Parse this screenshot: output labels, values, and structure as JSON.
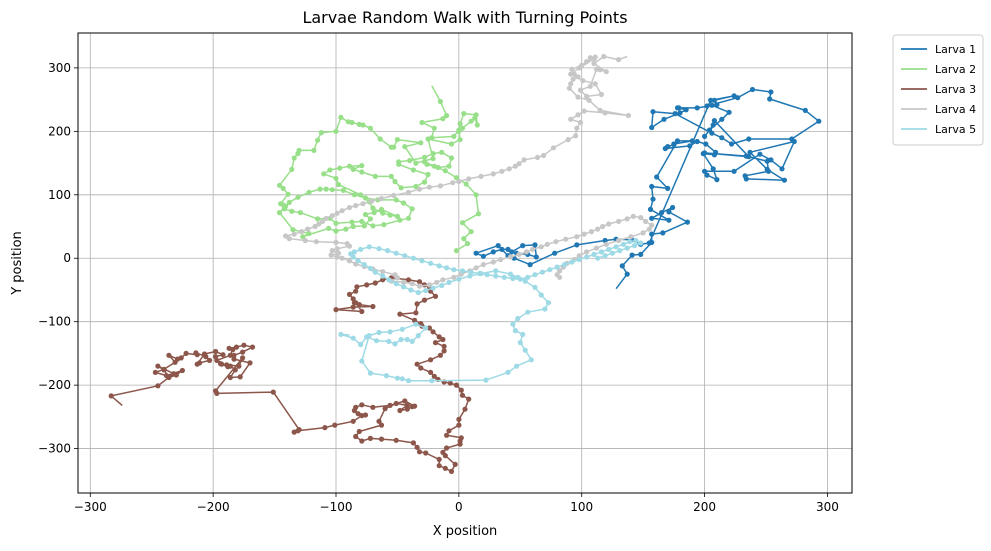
{
  "chart_data": {
    "type": "line",
    "title": "Larvae Random Walk with Turning Points",
    "xlabel": "X position",
    "ylabel": "Y position",
    "xlim": [
      -310,
      320
    ],
    "ylim": [
      -370,
      355
    ],
    "xticks": [
      -300,
      -200,
      -100,
      0,
      100,
      200,
      300
    ],
    "yticks": [
      -300,
      -200,
      -100,
      0,
      100,
      200,
      300
    ],
    "grid": true,
    "legend_position": "outside-top-right",
    "series": [
      {
        "name": "Larva 1",
        "color": "#1f77b4",
        "x": [
          128,
          137,
          133,
          141,
          148,
          157,
          157,
          166,
          186,
          171,
          174,
          165,
          157,
          171,
          156,
          158,
          157,
          170,
          161,
          178,
          190,
          175,
          175,
          170,
          168,
          188,
          194,
          201,
          209,
          208,
          199,
          207,
          210,
          202,
          200,
          224,
          245,
          254,
          263,
          273,
          237,
          251,
          265,
          234,
          233,
          252,
          251,
          234,
          200,
          236,
          208,
          207,
          200,
          204,
          214,
          220,
          206,
          202,
          227,
          239,
          254,
          253,
          282,
          293,
          271,
          236,
          222,
          214,
          206,
          176,
          158,
          157,
          167,
          180,
          185,
          178,
          179,
          194,
          210,
          208,
          224,
          205,
          155,
          148,
          141,
          128,
          119,
          96,
          78,
          58,
          45,
          40,
          32,
          14,
          20,
          28,
          35,
          40,
          47,
          56,
          63,
          62,
          52,
          43
        ],
        "y": [
          -48,
          -25,
          -12,
          5,
          6,
          25,
          38,
          40,
          57,
          73,
          80,
          72,
          63,
          60,
          77,
          93,
          113,
          110,
          128,
          185,
          185,
          180,
          179,
          176,
          173,
          177,
          184,
          180,
          167,
          163,
          165,
          141,
          124,
          131,
          137,
          137,
          164,
          155,
          141,
          184,
          167,
          140,
          123,
          125,
          130,
          137,
          153,
          161,
          166,
          160,
          217,
          210,
          192,
          202,
          219,
          230,
          241,
          240,
          253,
          266,
          262,
          251,
          233,
          216,
          188,
          188,
          180,
          190,
          197,
          228,
          231,
          206,
          219,
          229,
          234,
          237,
          237,
          237,
          242,
          249,
          256,
          249,
          24,
          22,
          29,
          30,
          28,
          21,
          8,
          -10,
          0,
          4,
          20,
          8,
          3,
          10,
          14,
          14,
          8,
          6,
          2,
          21,
          20,
          10
        ]
      },
      {
        "name": "Larva 2",
        "color": "#98df8a",
        "x": [
          -22,
          -15,
          -10,
          -13,
          -30,
          -20,
          -22,
          -4,
          0,
          1,
          4,
          14,
          15,
          13,
          10,
          3,
          0,
          1,
          -6,
          -25,
          -21,
          -35,
          -44,
          -31,
          -50,
          -53,
          -55,
          -64,
          -72,
          -78,
          -81,
          -87,
          -90,
          -96,
          -100,
          -112,
          -115,
          -118,
          -130,
          -131,
          -134,
          -136,
          -146,
          -143,
          -139,
          -145,
          -143,
          -142,
          -136,
          -129,
          -115,
          -105,
          -100,
          -87,
          -79,
          -70,
          -61,
          -48,
          -41,
          -38,
          -45,
          -51,
          -66,
          -76,
          -85,
          -94,
          -103,
          -108,
          -113,
          -122,
          -131,
          -138,
          -141,
          -146,
          -135,
          -122,
          -127,
          -106,
          -100,
          -92,
          -86,
          -77,
          -72,
          -76,
          -69,
          -63,
          -50,
          -56,
          -62,
          -70,
          -73,
          -80,
          -98,
          -100,
          -110,
          -105,
          -97,
          -89,
          -79,
          -86,
          -79,
          -68,
          -55,
          -52,
          -47,
          -35,
          -28,
          -25,
          -37,
          -49,
          -49,
          -40,
          -28,
          -21,
          -14,
          -6,
          -8,
          -17,
          -26,
          -28,
          -20,
          -11,
          -2,
          6,
          14,
          16,
          3,
          10,
          4,
          7,
          -2
        ],
        "y": [
          272,
          247,
          225,
          220,
          214,
          205,
          190,
          192,
          202,
          212,
          228,
          226,
          210,
          221,
          216,
          205,
          200,
          187,
          180,
          188,
          157,
          150,
          176,
          182,
          187,
          175,
          175,
          188,
          205,
          210,
          211,
          214,
          215,
          222,
          200,
          198,
          186,
          170,
          170,
          165,
          158,
          140,
          115,
          110,
          101,
          86,
          84,
          78,
          74,
          72,
          62,
          63,
          55,
          57,
          58,
          51,
          53,
          60,
          63,
          78,
          87,
          92,
          92,
          95,
          100,
          107,
          108,
          109,
          109,
          104,
          96,
          88,
          82,
          72,
          45,
          39,
          34,
          47,
          43,
          46,
          50,
          51,
          62,
          69,
          72,
          77,
          66,
          68,
          71,
          79,
          89,
          100,
          116,
          126,
          133,
          139,
          142,
          145,
          146,
          140,
          136,
          129,
          129,
          121,
          111,
          113,
          120,
          132,
          139,
          148,
          152,
          154,
          159,
          165,
          167,
          158,
          145,
          143,
          148,
          152,
          145,
          138,
          127,
          117,
          100,
          70,
          56,
          42,
          31,
          23,
          12
        ]
      },
      {
        "name": "Larva 3",
        "color": "#8c564b",
        "x": [
          -274,
          -283,
          -245,
          -232,
          -245,
          -240,
          -236,
          -230,
          -225,
          -238,
          -247,
          -240,
          -231,
          -236,
          -229,
          -226,
          -222,
          -213,
          -214,
          -206,
          -203,
          -211,
          -213,
          -207,
          -198,
          -192,
          -198,
          -194,
          -186,
          -182,
          -186,
          -178,
          -170,
          -183,
          -183,
          -176,
          -168,
          -175,
          -181,
          -187,
          -184,
          -186,
          -197,
          -193,
          -188,
          -189,
          -179,
          -176,
          -198,
          -197,
          -151,
          -130,
          -134,
          -131,
          -109,
          -101,
          -86,
          -79,
          -76,
          -82,
          -85,
          -84,
          -79,
          -70,
          -56,
          -44,
          -36,
          -38,
          -42,
          -48,
          -42,
          -51,
          -60,
          -65,
          -63,
          -81,
          -84,
          -79,
          -72,
          -63,
          -51,
          -37,
          -34,
          -32,
          -27,
          -16,
          -16,
          -11,
          -6,
          -3,
          -11,
          -13,
          -10,
          1,
          1,
          2,
          -10,
          -8,
          0,
          0,
          5,
          8,
          3,
          2,
          -2,
          -7,
          -12,
          -17,
          -20,
          -23,
          -31,
          -34,
          -23,
          -15,
          -12,
          -12,
          -19,
          -13,
          -16,
          -21,
          -24,
          -30,
          -31,
          -36,
          -48,
          -35,
          -34,
          -28,
          -19,
          -23,
          -24,
          -28,
          -32,
          -41,
          -55,
          -62,
          -68,
          -75,
          -83,
          -84,
          -89,
          -86,
          -85,
          -81,
          -70,
          -86,
          -100,
          -79,
          -84
        ],
        "y": [
          -232,
          -217,
          -201,
          -182,
          -170,
          -176,
          -188,
          -184,
          -177,
          -185,
          -180,
          -175,
          -164,
          -153,
          -159,
          -157,
          -150,
          -152,
          -149,
          -155,
          -161,
          -165,
          -167,
          -151,
          -147,
          -152,
          -155,
          -166,
          -170,
          -176,
          -188,
          -187,
          -165,
          -159,
          -153,
          -148,
          -140,
          -137,
          -140,
          -142,
          -144,
          -153,
          -161,
          -167,
          -171,
          -168,
          -170,
          -157,
          -209,
          -213,
          -211,
          -270,
          -274,
          -272,
          -267,
          -263,
          -257,
          -248,
          -247,
          -245,
          -240,
          -235,
          -231,
          -235,
          -232,
          -225,
          -233,
          -234,
          -238,
          -240,
          -232,
          -229,
          -237,
          -257,
          -263,
          -273,
          -281,
          -288,
          -284,
          -285,
          -287,
          -291,
          -298,
          -305,
          -307,
          -317,
          -327,
          -331,
          -336,
          -325,
          -311,
          -306,
          -299,
          -293,
          -288,
          -283,
          -279,
          -272,
          -263,
          -254,
          -238,
          -222,
          -216,
          -208,
          -200,
          -197,
          -195,
          -191,
          -186,
          -180,
          -173,
          -167,
          -160,
          -153,
          -146,
          -139,
          -133,
          -128,
          -124,
          -116,
          -110,
          -107,
          -103,
          -98,
          -88,
          -86,
          -72,
          -66,
          -60,
          -52,
          -45,
          -42,
          -37,
          -34,
          -31,
          -34,
          -39,
          -42,
          -45,
          -52,
          -57,
          -64,
          -70,
          -73,
          -76,
          -77,
          -81,
          -84,
          -70
        ]
      },
      {
        "name": "Larva 4",
        "color": "#c7c7c7",
        "x": [
          137,
          130,
          118,
          110,
          120,
          115,
          112,
          107,
          99,
          104,
          116,
          111,
          101,
          91,
          98,
          110,
          107,
          111,
          104,
          100,
          92,
          94,
          97,
          93,
          91,
          90,
          97,
          106,
          115,
          138,
          119,
          102,
          97,
          91,
          99,
          96,
          95,
          89,
          77,
          69,
          64,
          53,
          49,
          46,
          41,
          35,
          28,
          18,
          8,
          0,
          -5,
          -15,
          -24,
          -32,
          -41,
          -53,
          -63,
          -71,
          -78,
          -84,
          -89,
          -95,
          -99,
          -103,
          -108,
          -111,
          -114,
          -117,
          -123,
          -128,
          -134,
          -141,
          -138,
          -125,
          -116,
          -100,
          -91,
          -89,
          -99,
          -103,
          -98,
          -104,
          -99,
          -95,
          -89,
          -84,
          -77,
          -70,
          -62,
          -52,
          -50,
          -55,
          -45,
          -38,
          -32,
          -24,
          -18,
          -13,
          -4,
          2,
          9,
          14,
          20,
          28,
          34,
          42,
          49,
          55,
          60,
          67,
          72,
          79,
          87,
          96,
          102,
          108,
          113,
          117,
          122,
          130,
          137,
          142,
          148,
          152,
          157,
          155,
          150,
          140,
          130,
          120,
          112,
          104,
          98,
          94,
          88,
          85,
          82,
          80,
          82
        ],
        "y": [
          318,
          313,
          318,
          307,
          294,
          297,
          298,
          271,
          265,
          255,
          258,
          275,
          280,
          290,
          300,
          314,
          316,
          317,
          310,
          304,
          298,
          290,
          286,
          282,
          275,
          268,
          254,
          249,
          233,
          225,
          229,
          232,
          226,
          219,
          214,
          205,
          193,
          187,
          174,
          162,
          159,
          155,
          149,
          145,
          141,
          137,
          133,
          129,
          125,
          121,
          119,
          114,
          112,
          109,
          104,
          99,
          94,
          90,
          86,
          83,
          80,
          75,
          71,
          67,
          63,
          58,
          54,
          50,
          46,
          42,
          38,
          35,
          31,
          28,
          26,
          25,
          23,
          19,
          15,
          12,
          8,
          5,
          2,
          0,
          -4,
          -9,
          -13,
          -17,
          -21,
          -26,
          -31,
          -36,
          -38,
          -40,
          -44,
          -42,
          -38,
          -34,
          -30,
          -25,
          -20,
          -15,
          -10,
          -6,
          -2,
          2,
          6,
          10,
          14,
          18,
          22,
          26,
          30,
          34,
          38,
          42,
          46,
          50,
          54,
          58,
          62,
          66,
          64,
          58,
          52,
          46,
          40,
          34,
          28,
          22,
          16,
          10,
          4,
          -2,
          -8,
          -14,
          -20,
          -26,
          -30
        ]
      },
      {
        "name": "Larva 5",
        "color": "#9edae5",
        "x": [
          -89,
          -96,
          -86,
          -80,
          -75,
          -67,
          -57,
          -52,
          -47,
          -42,
          -38,
          -33,
          -27,
          -35,
          -46,
          -56,
          -65,
          -73,
          -79,
          -72,
          -59,
          -50,
          -46,
          -41,
          -22,
          22,
          40,
          47,
          59,
          54,
          50,
          52,
          46,
          44,
          48,
          56,
          70,
          73,
          67,
          62,
          54,
          48,
          42,
          30,
          18,
          9,
          0,
          -8,
          -14,
          -21,
          -27,
          -33,
          -39,
          -45,
          -51,
          -57,
          -62,
          -68,
          -72,
          -77,
          -82,
          -86,
          -88,
          -85,
          -80,
          -73,
          -65,
          -58,
          -51,
          -44,
          -37,
          -30,
          -23,
          -16,
          -10,
          -4,
          3,
          10,
          17,
          23,
          30,
          37,
          44,
          50,
          56,
          62,
          68,
          74,
          80,
          86,
          92,
          98,
          104,
          110,
          116,
          122,
          128,
          134,
          139,
          144,
          148,
          143,
          137,
          131,
          125,
          119,
          113
        ],
        "y": [
          -121,
          -120,
          -126,
          -136,
          -124,
          -130,
          -131,
          -135,
          -128,
          -128,
          -131,
          -122,
          -110,
          -104,
          -112,
          -116,
          -117,
          -122,
          -162,
          -181,
          -185,
          -189,
          -190,
          -193,
          -193,
          -192,
          -180,
          -170,
          -160,
          -145,
          -133,
          -120,
          -114,
          -104,
          -95,
          -85,
          -80,
          -70,
          -58,
          -46,
          -36,
          -30,
          -25,
          -20,
          -24,
          -28,
          -33,
          -38,
          -43,
          -47,
          -51,
          -54,
          -50,
          -45,
          -40,
          -34,
          -28,
          -22,
          -16,
          -10,
          -4,
          2,
          7,
          10,
          14,
          18,
          15,
          12,
          8,
          4,
          0,
          -4,
          -8,
          -12,
          -15,
          -18,
          -20,
          -22,
          -24,
          -26,
          -28,
          -30,
          -32,
          -33,
          -30,
          -26,
          -22,
          -18,
          -14,
          -10,
          -6,
          -2,
          2,
          6,
          10,
          14,
          18,
          22,
          26,
          28,
          24,
          20,
          16,
          12,
          8,
          4,
          0
        ]
      }
    ]
  }
}
